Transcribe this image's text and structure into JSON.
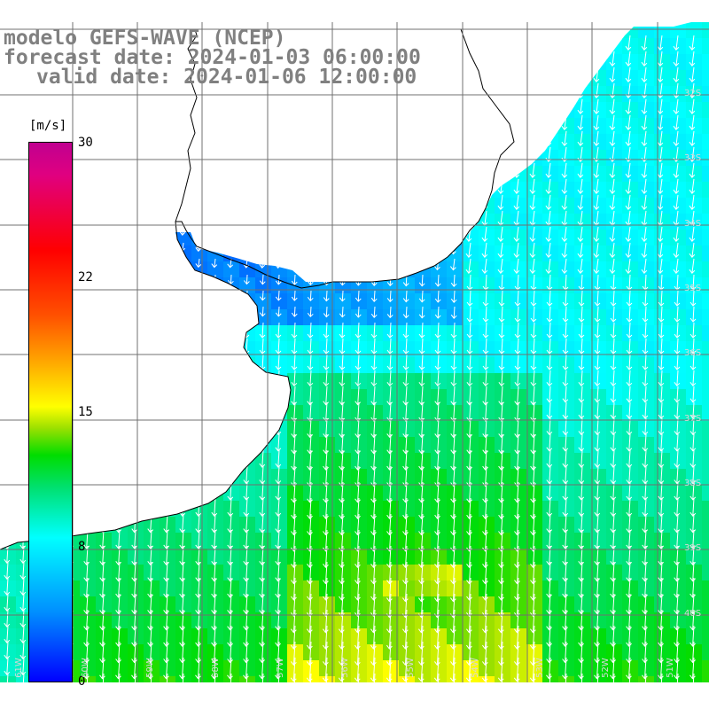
{
  "title": {
    "model": "modelo GEFS-WAVE (NCEP)",
    "forecast": "forecast date: 2024-01-03 06:00:00",
    "valid": "valid date: 2024-01-06 12:00:00"
  },
  "colorbar": {
    "unit": "[m/s]",
    "ticks": [
      "30",
      "22",
      "15",
      "8",
      "0"
    ],
    "min": 0,
    "max": 30,
    "colors": [
      "#0000ff",
      "#0090ff",
      "#00ffff",
      "#00dd00",
      "#ffff00",
      "#ff5000",
      "#ff0000",
      "#c00090"
    ]
  },
  "axes": {
    "lat_labels": [
      "32S",
      "33S",
      "34S",
      "35S",
      "36S",
      "37S",
      "38S",
      "39S",
      "40S"
    ],
    "lon_labels": [
      "61W",
      "60W",
      "59W",
      "58W",
      "57W",
      "56W",
      "55W",
      "54W",
      "53W",
      "52W",
      "51W"
    ]
  },
  "field": {
    "quantity": "wind speed",
    "wind_direction": "from north-northeast (arrows pointing south-southwest)",
    "pattern": "weak winds (~1-5 m/s) in the Rio de la Plata estuary; 6-9 m/s along the Uruguay and southern Brazil coast; strongest winds 10-15 m/s offshore in the south, peak near 39S"
  }
}
